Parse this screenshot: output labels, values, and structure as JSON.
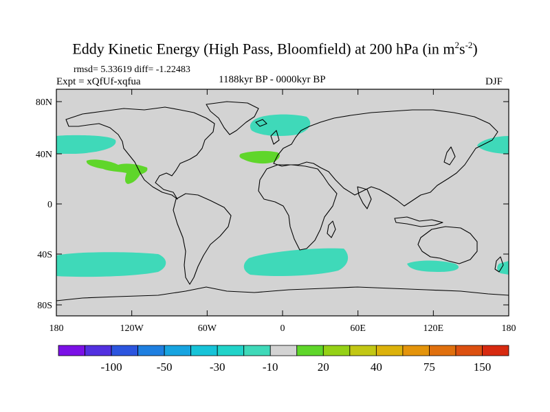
{
  "title": {
    "main": "Eddy Kinetic Energy (High Pass, Bloomfield) at 200 hPa (in m",
    "sup1": "2",
    "mid": "s",
    "sup2": "-2",
    "close": ")"
  },
  "stats": "rmsd= 5.33619  diff= -1.22483",
  "experiment": "Expt = xQfUf-xqfua",
  "period": "1188kyr BP - 0000kyr BP",
  "season": "DJF",
  "colors": {
    "ocean_neutral": "#d3d3d3",
    "positive_green": "#5fd62a",
    "negative_teal": "#3fd9b9",
    "coast": "#000000"
  },
  "map": {
    "lat_ticks": [
      "80N",
      "40N",
      "0",
      "40S",
      "80S"
    ],
    "lon_ticks": [
      "180",
      "120W",
      "60W",
      "0",
      "60E",
      "120E",
      "180"
    ],
    "regions": [
      {
        "name": "north-atlantic-teal",
        "color": "negative_teal"
      },
      {
        "name": "nw-pacific-teal",
        "color": "negative_teal"
      },
      {
        "name": "ne-pacific-teal",
        "color": "negative_teal"
      },
      {
        "name": "east-pacific-green",
        "color": "positive_green"
      },
      {
        "name": "iberia-green",
        "color": "positive_green"
      },
      {
        "name": "south-pacific-teal",
        "color": "negative_teal"
      },
      {
        "name": "south-atlantic-teal",
        "color": "negative_teal"
      },
      {
        "name": "south-indian-teal",
        "color": "negative_teal"
      }
    ]
  },
  "colorbar": {
    "colors": [
      "#7b10e6",
      "#5230e0",
      "#2c55df",
      "#1e7fe0",
      "#17a4e0",
      "#17c3d8",
      "#21d3c9",
      "#3fd9b9",
      "#d3d3d3",
      "#5fd62a",
      "#95d116",
      "#c2c714",
      "#dcb20b",
      "#e4940b",
      "#e0700e",
      "#dc5010",
      "#d72a10"
    ],
    "labels": [
      "-100",
      "-50",
      "-30",
      "-10",
      "20",
      "40",
      "75",
      "150"
    ]
  }
}
